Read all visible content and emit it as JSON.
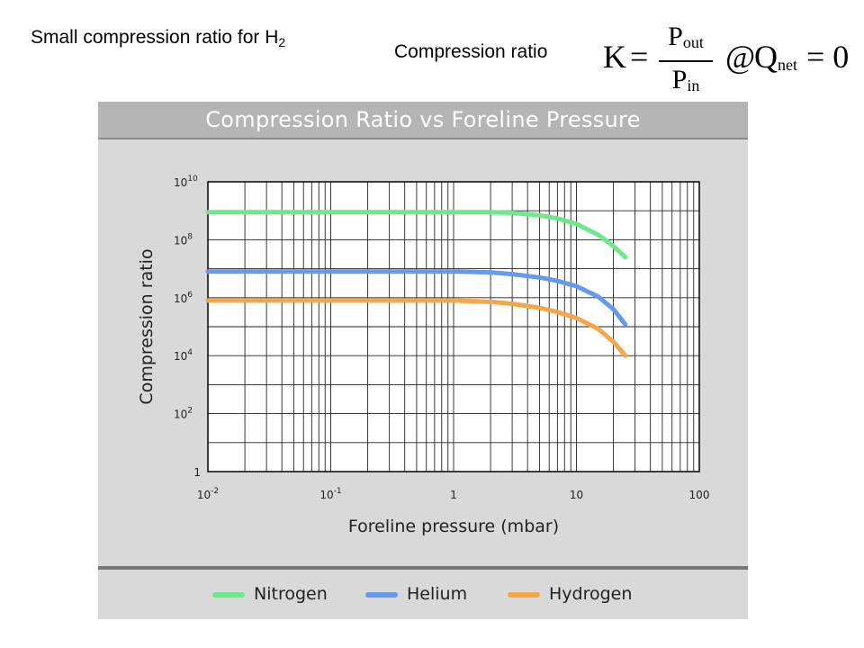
{
  "slide": {
    "title": "Small compression ratio for H",
    "title_sub": "2",
    "formula_label": "Compression ratio",
    "formula": {
      "lhs": "K",
      "eq": "=",
      "num": "P",
      "num_sub": "out",
      "den": "P",
      "den_sub": "in",
      "at": "@",
      "q": "Q",
      "q_sub": "net",
      "rhs": "= 0"
    }
  },
  "chart_data": {
    "type": "line",
    "title": "Compression Ratio vs Foreline Pressure",
    "xlabel": "Foreline pressure (mbar)",
    "ylabel": "Compression ratio",
    "xscale": "log",
    "yscale": "log",
    "xlim": [
      0.01,
      100
    ],
    "ylim": [
      1,
      10000000000
    ],
    "grid": true,
    "legend_position": "bottom",
    "x_ticks": [
      {
        "value": 0.01,
        "base": "10",
        "exp": "-2"
      },
      {
        "value": 0.1,
        "base": "10",
        "exp": "-1"
      },
      {
        "value": 1,
        "base": "1",
        "exp": ""
      },
      {
        "value": 10,
        "base": "10",
        "exp": ""
      },
      {
        "value": 100,
        "base": "100",
        "exp": ""
      }
    ],
    "y_ticks": [
      {
        "value": 1,
        "base": "1",
        "exp": ""
      },
      {
        "value": 100,
        "base": "10",
        "exp": "2"
      },
      {
        "value": 10000,
        "base": "10",
        "exp": "4"
      },
      {
        "value": 1000000,
        "base": "10",
        "exp": "6"
      },
      {
        "value": 100000000,
        "base": "10",
        "exp": "8"
      },
      {
        "value": 10000000000,
        "base": "10",
        "exp": "10"
      }
    ],
    "series": [
      {
        "name": "Nitrogen",
        "color": "#6ee88a",
        "points": [
          [
            0.01,
            900000000
          ],
          [
            1,
            900000000
          ],
          [
            2,
            900000000
          ],
          [
            3,
            850000000
          ],
          [
            5,
            700000000
          ],
          [
            7,
            550000000
          ],
          [
            10,
            350000000
          ],
          [
            15,
            150000000
          ],
          [
            20,
            60000000
          ],
          [
            25,
            25000000
          ]
        ]
      },
      {
        "name": "Helium",
        "color": "#6699ee",
        "points": [
          [
            0.01,
            8000000
          ],
          [
            1,
            8000000
          ],
          [
            2,
            7500000
          ],
          [
            3,
            6500000
          ],
          [
            5,
            5000000
          ],
          [
            7,
            3800000
          ],
          [
            10,
            2500000
          ],
          [
            15,
            1100000
          ],
          [
            20,
            400000
          ],
          [
            25,
            120000
          ]
        ]
      },
      {
        "name": "Hydrogen",
        "color": "#f5a64a",
        "points": [
          [
            0.01,
            800000
          ],
          [
            1,
            800000
          ],
          [
            2,
            720000
          ],
          [
            3,
            620000
          ],
          [
            5,
            450000
          ],
          [
            7,
            320000
          ],
          [
            10,
            200000
          ],
          [
            15,
            85000
          ],
          [
            20,
            30000
          ],
          [
            25,
            10000
          ]
        ]
      }
    ]
  }
}
